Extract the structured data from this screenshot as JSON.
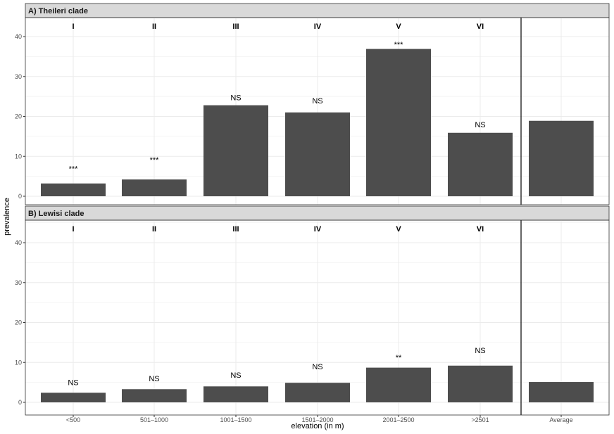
{
  "chart_data": {
    "type": "bar",
    "xlabel": "elevation (in m)",
    "ylabel": "prevalence",
    "ylim": [
      0,
      45
    ],
    "yticks": [
      0,
      10,
      20,
      30,
      40
    ],
    "categories": [
      "<500",
      "501–1000",
      "1001–1500",
      "1501–2000",
      "2001–2500",
      ">2501",
      "Average"
    ],
    "zone_labels": [
      "I",
      "II",
      "III",
      "IV",
      "V",
      "VI"
    ],
    "grid": true,
    "panels": [
      {
        "title": "A) Theileri clade",
        "values": [
          3.2,
          4.2,
          22.8,
          21.0,
          36.9,
          15.9,
          18.9
        ],
        "annotations": [
          {
            "text": "***",
            "at": 7.0
          },
          {
            "text": "***",
            "at": 9.2
          },
          {
            "text": "NS",
            "at": 24.8
          },
          {
            "text": "NS",
            "at": 24.0
          },
          {
            "text": "***",
            "at": 38.1
          },
          {
            "text": "NS",
            "at": 18.0
          }
        ]
      },
      {
        "title": "B) Lewisi clade",
        "values": [
          2.4,
          3.3,
          4.0,
          4.9,
          8.7,
          9.2,
          5.1
        ],
        "annotations": [
          {
            "text": "NS",
            "at": 5.0
          },
          {
            "text": "NS",
            "at": 6.0
          },
          {
            "text": "NS",
            "at": 6.9
          },
          {
            "text": "NS",
            "at": 9.0
          },
          {
            "text": "**",
            "at": 11.3
          },
          {
            "text": "NS",
            "at": 13.0
          }
        ]
      }
    ],
    "colors": {
      "bar": "#4d4d4d",
      "strip": "#d9d9d9",
      "grid": "#ebebeb"
    }
  }
}
